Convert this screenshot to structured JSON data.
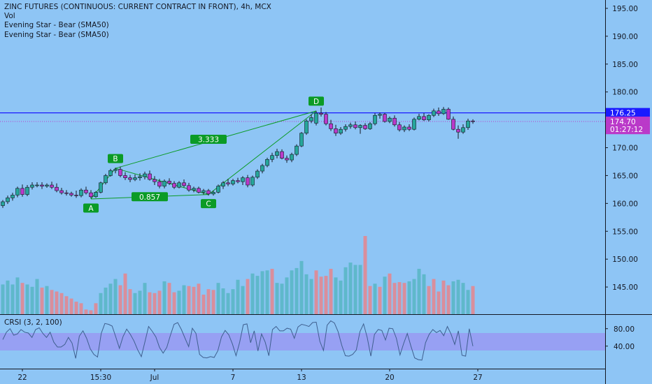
{
  "colors": {
    "background": "#8ec5f5",
    "up": "#26a69a",
    "down": "#ba39c9",
    "vol_up": "#5fb8cb",
    "vol_down": "#d98e9c",
    "hline": "#1a1aff",
    "pattern": "#0b9b26",
    "crsi_band": "#9999f2",
    "crsi_line": "#3f5f8f",
    "axis_text": "#131722"
  },
  "legend": {
    "title": "ZINC FUTURES (CONTINUOUS: CURRENT CONTRACT IN FRONT), 4h, MCX",
    "lines": [
      "Vol",
      "Evening Star - Bear (SMA50)",
      "Evening Star - Bear (SMA50)"
    ]
  },
  "crsi_legend": "CRSI (3, 2, 100)",
  "price_labels": [
    {
      "text": "176.25",
      "value": 176.25,
      "bg": "#1a1aff"
    },
    {
      "text": "174.70",
      "value": 174.7,
      "bg": "#ba39c9"
    },
    {
      "text": "01:27:12",
      "value": 173.3,
      "bg": "#ba39c9"
    }
  ],
  "chart_data": [
    {
      "type": "candlestick",
      "y_ticks": [
        "195.00",
        "190.00",
        "185.00",
        "180.00",
        "175.00",
        "170.00",
        "165.00",
        "160.00",
        "155.00",
        "150.00",
        "145.00"
      ],
      "ylim": [
        140.5,
        196
      ],
      "x_ticks": [
        {
          "label": "22",
          "index": 4
        },
        {
          "label": "15:30",
          "index": 20
        },
        {
          "label": "Jul",
          "index": 31
        },
        {
          "label": "7",
          "index": 47
        },
        {
          "label": "13",
          "index": 61
        },
        {
          "label": "20",
          "index": 79
        },
        {
          "label": "27",
          "index": 97
        }
      ],
      "n_slots": 123,
      "candles": [
        [
          159.6,
          160.6,
          159.2,
          160.3
        ],
        [
          160.3,
          161.4,
          159.9,
          161.0
        ],
        [
          161.0,
          161.9,
          160.5,
          161.5
        ],
        [
          161.5,
          163.0,
          161.1,
          162.7
        ],
        [
          162.7,
          163.4,
          161.2,
          161.6
        ],
        [
          161.6,
          163.3,
          161.3,
          162.9
        ],
        [
          162.9,
          163.8,
          162.5,
          163.3
        ],
        [
          163.3,
          163.8,
          162.9,
          163.3
        ],
        [
          163.3,
          163.8,
          162.6,
          163.1
        ],
        [
          163.1,
          163.6,
          162.8,
          163.3
        ],
        [
          163.3,
          163.9,
          162.6,
          162.9
        ],
        [
          162.9,
          163.6,
          162.0,
          162.3
        ],
        [
          162.3,
          162.8,
          161.6,
          161.9
        ],
        [
          161.9,
          162.4,
          161.4,
          161.8
        ],
        [
          161.8,
          162.1,
          161.2,
          161.5
        ],
        [
          161.5,
          162.3,
          161.0,
          161.4
        ],
        [
          161.4,
          162.7,
          161.1,
          162.4
        ],
        [
          162.4,
          163.0,
          161.6,
          161.9
        ],
        [
          161.9,
          162.4,
          160.9,
          161.2
        ],
        [
          161.2,
          162.2,
          161.0,
          162.0
        ],
        [
          162.0,
          163.9,
          161.8,
          163.7
        ],
        [
          163.7,
          165.3,
          163.4,
          165.0
        ],
        [
          165.0,
          166.2,
          164.8,
          165.9
        ],
        [
          165.9,
          166.4,
          165.4,
          166.1
        ],
        [
          166.1,
          166.6,
          164.7,
          165.0
        ],
        [
          165.0,
          165.6,
          164.2,
          164.6
        ],
        [
          164.6,
          165.1,
          163.8,
          164.3
        ],
        [
          164.3,
          165.2,
          164.0,
          164.6
        ],
        [
          164.6,
          165.4,
          164.1,
          164.8
        ],
        [
          164.8,
          165.7,
          164.3,
          165.3
        ],
        [
          165.3,
          165.9,
          164.1,
          164.3
        ],
        [
          164.3,
          164.9,
          163.3,
          163.9
        ],
        [
          163.9,
          164.4,
          162.7,
          163.1
        ],
        [
          163.1,
          164.3,
          162.7,
          164.0
        ],
        [
          164.0,
          164.5,
          163.3,
          163.6
        ],
        [
          163.6,
          164.0,
          162.6,
          162.9
        ],
        [
          162.9,
          164.0,
          162.7,
          163.7
        ],
        [
          163.7,
          164.3,
          162.9,
          163.2
        ],
        [
          163.2,
          163.7,
          162.1,
          162.4
        ],
        [
          162.4,
          163.0,
          162.0,
          162.7
        ],
        [
          162.7,
          163.0,
          161.8,
          162.0
        ],
        [
          162.0,
          162.6,
          161.6,
          162.3
        ],
        [
          162.3,
          162.6,
          161.4,
          161.7
        ],
        [
          161.7,
          162.3,
          161.4,
          162.0
        ],
        [
          162.0,
          163.4,
          161.8,
          163.1
        ],
        [
          163.1,
          164.0,
          162.6,
          163.7
        ],
        [
          163.7,
          164.4,
          163.1,
          163.5
        ],
        [
          163.5,
          164.4,
          163.2,
          164.1
        ],
        [
          164.1,
          164.6,
          163.6,
          163.9
        ],
        [
          163.9,
          164.9,
          163.3,
          164.6
        ],
        [
          164.6,
          165.1,
          162.9,
          163.3
        ],
        [
          163.3,
          165.0,
          163.0,
          164.7
        ],
        [
          164.7,
          166.1,
          164.4,
          165.8
        ],
        [
          165.8,
          167.1,
          165.4,
          166.8
        ],
        [
          166.8,
          168.2,
          166.5,
          167.9
        ],
        [
          167.9,
          169.1,
          167.4,
          168.6
        ],
        [
          168.6,
          169.8,
          168.1,
          169.3
        ],
        [
          169.3,
          169.7,
          167.9,
          168.1
        ],
        [
          168.1,
          168.6,
          167.3,
          167.8
        ],
        [
          167.8,
          169.1,
          167.4,
          168.8
        ],
        [
          168.8,
          170.6,
          168.5,
          170.3
        ],
        [
          170.3,
          172.8,
          170.1,
          172.6
        ],
        [
          172.6,
          175.1,
          172.3,
          174.8
        ],
        [
          174.8,
          176.0,
          174.4,
          175.4
        ],
        [
          174.4,
          176.6,
          174.0,
          176.2
        ],
        [
          176.2,
          177.2,
          175.6,
          176.0
        ],
        [
          176.0,
          176.4,
          174.0,
          174.3
        ],
        [
          174.3,
          175.0,
          173.0,
          173.4
        ],
        [
          173.4,
          174.1,
          172.1,
          172.6
        ],
        [
          172.6,
          173.7,
          172.3,
          173.3
        ],
        [
          173.3,
          174.2,
          172.9,
          173.8
        ],
        [
          173.8,
          174.5,
          173.4,
          174.1
        ],
        [
          174.1,
          174.7,
          173.3,
          173.6
        ],
        [
          173.6,
          174.2,
          172.5,
          174.0
        ],
        [
          174.0,
          174.4,
          173.2,
          173.4
        ],
        [
          173.4,
          174.6,
          173.2,
          174.3
        ],
        [
          174.3,
          176.2,
          174.0,
          175.8
        ],
        [
          175.8,
          176.3,
          175.2,
          176.0
        ],
        [
          176.0,
          176.2,
          174.5,
          174.7
        ],
        [
          174.7,
          175.6,
          174.4,
          175.3
        ],
        [
          175.3,
          175.8,
          173.8,
          174.1
        ],
        [
          174.1,
          174.6,
          172.9,
          173.2
        ],
        [
          173.2,
          174.0,
          172.8,
          173.7
        ],
        [
          173.7,
          174.2,
          173.0,
          173.3
        ],
        [
          173.3,
          175.4,
          173.1,
          175.1
        ],
        [
          175.1,
          176.1,
          174.9,
          175.6
        ],
        [
          175.6,
          176.2,
          174.8,
          175.0
        ],
        [
          175.0,
          176.0,
          174.7,
          175.8
        ],
        [
          175.8,
          177.0,
          175.5,
          176.6
        ],
        [
          176.6,
          177.2,
          175.7,
          176.1
        ],
        [
          176.1,
          177.3,
          175.9,
          176.9
        ],
        [
          176.9,
          177.2,
          175.0,
          175.1
        ],
        [
          175.1,
          175.6,
          173.1,
          173.3
        ],
        [
          173.3,
          174.0,
          171.6,
          172.8
        ],
        [
          172.8,
          174.2,
          172.5,
          173.6
        ],
        [
          173.6,
          175.2,
          173.2,
          174.8
        ],
        [
          174.8,
          175.1,
          174.3,
          174.7
        ]
      ],
      "volume_ylim": [
        0,
        100
      ],
      "volumes": [
        [
          38,
          1
        ],
        [
          43,
          1
        ],
        [
          38,
          1
        ],
        [
          47,
          1
        ],
        [
          40,
          0
        ],
        [
          38,
          1
        ],
        [
          35,
          1
        ],
        [
          45,
          1
        ],
        [
          34,
          0
        ],
        [
          36,
          1
        ],
        [
          31,
          0
        ],
        [
          29,
          0
        ],
        [
          27,
          0
        ],
        [
          23,
          0
        ],
        [
          20,
          0
        ],
        [
          16,
          0
        ],
        [
          14,
          0
        ],
        [
          6,
          0
        ],
        [
          5,
          0
        ],
        [
          14,
          0
        ],
        [
          27,
          1
        ],
        [
          34,
          1
        ],
        [
          39,
          1
        ],
        [
          45,
          1
        ],
        [
          37,
          0
        ],
        [
          52,
          0
        ],
        [
          32,
          0
        ],
        [
          27,
          1
        ],
        [
          30,
          1
        ],
        [
          40,
          1
        ],
        [
          28,
          0
        ],
        [
          27,
          0
        ],
        [
          30,
          0
        ],
        [
          42,
          1
        ],
        [
          40,
          0
        ],
        [
          28,
          0
        ],
        [
          30,
          1
        ],
        [
          37,
          1
        ],
        [
          36,
          0
        ],
        [
          35,
          0
        ],
        [
          39,
          0
        ],
        [
          25,
          0
        ],
        [
          32,
          0
        ],
        [
          31,
          0
        ],
        [
          40,
          1
        ],
        [
          33,
          1
        ],
        [
          27,
          1
        ],
        [
          32,
          1
        ],
        [
          44,
          1
        ],
        [
          36,
          1
        ],
        [
          45,
          0
        ],
        [
          52,
          1
        ],
        [
          49,
          1
        ],
        [
          55,
          1
        ],
        [
          56,
          1
        ],
        [
          58,
          0
        ],
        [
          40,
          1
        ],
        [
          39,
          1
        ],
        [
          47,
          1
        ],
        [
          56,
          1
        ],
        [
          59,
          1
        ],
        [
          68,
          1
        ],
        [
          51,
          1
        ],
        [
          45,
          1
        ],
        [
          56,
          0
        ],
        [
          48,
          0
        ],
        [
          49,
          0
        ],
        [
          58,
          0
        ],
        [
          47,
          1
        ],
        [
          43,
          1
        ],
        [
          60,
          1
        ],
        [
          66,
          1
        ],
        [
          63,
          1
        ],
        [
          63,
          1
        ],
        [
          100,
          0
        ],
        [
          36,
          0
        ],
        [
          39,
          1
        ],
        [
          35,
          0
        ],
        [
          48,
          1
        ],
        [
          52,
          0
        ],
        [
          40,
          0
        ],
        [
          41,
          0
        ],
        [
          40,
          0
        ],
        [
          42,
          1
        ],
        [
          45,
          1
        ],
        [
          58,
          1
        ],
        [
          51,
          1
        ],
        [
          36,
          0
        ],
        [
          45,
          0
        ],
        [
          29,
          0
        ],
        [
          43,
          0
        ],
        [
          37,
          0
        ],
        [
          42,
          1
        ],
        [
          44,
          1
        ],
        [
          40,
          1
        ],
        [
          31,
          1
        ],
        [
          36,
          0
        ]
      ],
      "annotations": {
        "points": [
          {
            "label": "A",
            "index": 18,
            "price": 160.8
          },
          {
            "label": "B",
            "index": 23,
            "price": 166.3
          },
          {
            "label": "C",
            "index": 42,
            "price": 161.6
          },
          {
            "label": "D",
            "index": 64,
            "price": 176.6
          }
        ],
        "ratios": [
          {
            "text": "3.333",
            "index": 42,
            "price": 171.5
          },
          {
            "text": "0.857",
            "index": 30,
            "price": 161.2
          }
        ]
      },
      "hlines": [
        176.25,
        174.7
      ]
    },
    {
      "type": "line",
      "name": "CRSI (3, 2, 100)",
      "y_ticks": [
        "80.00",
        "40.00"
      ],
      "ylim": [
        -10,
        110
      ],
      "band": [
        30,
        70
      ],
      "values": [
        55,
        72,
        80,
        65,
        68,
        78,
        72,
        70,
        60,
        78,
        82,
        69,
        60,
        72,
        49,
        38,
        38,
        44,
        60,
        47,
        12,
        63,
        75,
        58,
        34,
        21,
        15,
        69,
        92,
        90,
        86,
        61,
        35,
        62,
        79,
        67,
        52,
        32,
        16,
        50,
        85,
        74,
        61,
        37,
        24,
        37,
        65,
        90,
        94,
        78,
        58,
        39,
        81,
        69,
        21,
        14,
        13,
        16,
        14,
        29,
        61,
        76,
        66,
        45,
        18,
        49,
        89,
        91,
        48,
        75,
        29,
        68,
        49,
        18,
        78,
        85,
        75,
        75,
        81,
        79,
        58,
        84,
        90,
        88,
        85,
        94,
        95,
        51,
        30,
        88,
        98,
        93,
        73,
        42,
        18,
        17,
        21,
        31,
        73,
        91,
        60,
        17,
        67,
        78,
        76,
        54,
        81,
        80,
        58,
        20,
        46,
        69,
        40,
        13,
        9,
        8,
        48,
        67,
        78,
        71,
        76,
        64,
        85,
        68,
        44,
        75,
        19,
        17,
        80,
        40
      ]
    }
  ]
}
